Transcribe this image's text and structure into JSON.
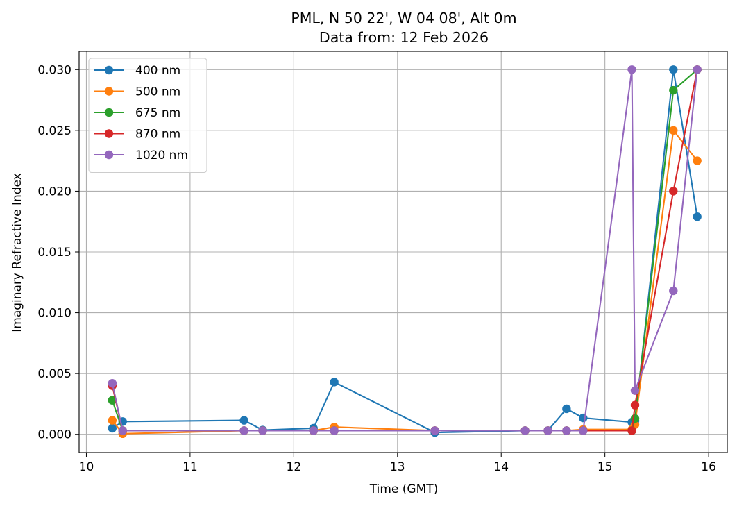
{
  "chart_data": {
    "type": "line",
    "title": "PML, N 50 22', W 04 08', Alt 0m",
    "subtitle": "Data from: 12 Feb 2026",
    "xlabel": "Time (GMT)",
    "ylabel": "Imaginary Refractive Index",
    "xlim": [
      9.93,
      16.18
    ],
    "ylim": [
      -0.0015,
      0.0315
    ],
    "xticks": [
      10,
      11,
      12,
      13,
      14,
      15,
      16
    ],
    "xtick_labels": [
      "10",
      "11",
      "12",
      "13",
      "14",
      "15",
      "16"
    ],
    "yticks": [
      0.0,
      0.005,
      0.01,
      0.015,
      0.02,
      0.025,
      0.03
    ],
    "ytick_labels": [
      "0.000",
      "0.005",
      "0.010",
      "0.015",
      "0.020",
      "0.025",
      "0.030"
    ],
    "grid": true,
    "legend_position": "upper-left",
    "series": [
      {
        "name": "400 nm",
        "color": "#1f77b4",
        "x": [
          10.25,
          10.35,
          11.52,
          11.7,
          12.19,
          12.39,
          13.36,
          14.23,
          14.45,
          14.63,
          14.79,
          15.26,
          15.29,
          15.66,
          15.89
        ],
        "y": [
          0.0005,
          0.00105,
          0.00115,
          0.00035,
          0.0005,
          0.0043,
          0.00015,
          0.0003,
          0.0003,
          0.0021,
          0.00135,
          0.001,
          0.0011,
          0.03,
          0.0179
        ]
      },
      {
        "name": "500 nm",
        "color": "#ff7f0e",
        "x": [
          10.25,
          10.35,
          11.52,
          11.7,
          12.19,
          12.39,
          13.36,
          14.23,
          14.45,
          14.63,
          14.79,
          15.26,
          15.29,
          15.66,
          15.89
        ],
        "y": [
          0.00115,
          5e-05,
          0.0003,
          0.0003,
          0.0003,
          0.0006,
          0.0003,
          0.0003,
          0.0003,
          0.0003,
          0.0004,
          0.0004,
          0.0008,
          0.025,
          0.0225
        ]
      },
      {
        "name": "675 nm",
        "color": "#2ca02c",
        "x": [
          10.25,
          10.35,
          11.52,
          11.7,
          12.19,
          12.39,
          13.36,
          14.23,
          14.45,
          14.63,
          14.79,
          15.26,
          15.29,
          15.66,
          15.89
        ],
        "y": [
          0.0028,
          0.0003,
          0.0003,
          0.0003,
          0.0003,
          0.0003,
          0.0003,
          0.0003,
          0.0003,
          0.0003,
          0.0003,
          0.0003,
          0.0013,
          0.0283,
          0.03
        ]
      },
      {
        "name": "870 nm",
        "color": "#d62728",
        "x": [
          10.25,
          10.35,
          11.52,
          11.7,
          12.19,
          12.39,
          13.36,
          14.23,
          14.45,
          14.63,
          14.79,
          15.26,
          15.29,
          15.66,
          15.89
        ],
        "y": [
          0.004,
          0.0003,
          0.0003,
          0.0003,
          0.0003,
          0.0003,
          0.0003,
          0.0003,
          0.0003,
          0.0003,
          0.0003,
          0.0003,
          0.0024,
          0.02,
          0.03
        ]
      },
      {
        "name": "1020 nm",
        "color": "#9467bd",
        "x": [
          10.25,
          10.35,
          11.52,
          11.7,
          12.19,
          12.39,
          13.36,
          14.23,
          14.45,
          14.63,
          14.79,
          15.26,
          15.29,
          15.66,
          15.89
        ],
        "y": [
          0.0042,
          0.0003,
          0.0003,
          0.0003,
          0.0003,
          0.0003,
          0.0003,
          0.0003,
          0.0003,
          0.0003,
          0.0003,
          0.03,
          0.0036,
          0.0118,
          0.03
        ]
      }
    ]
  }
}
